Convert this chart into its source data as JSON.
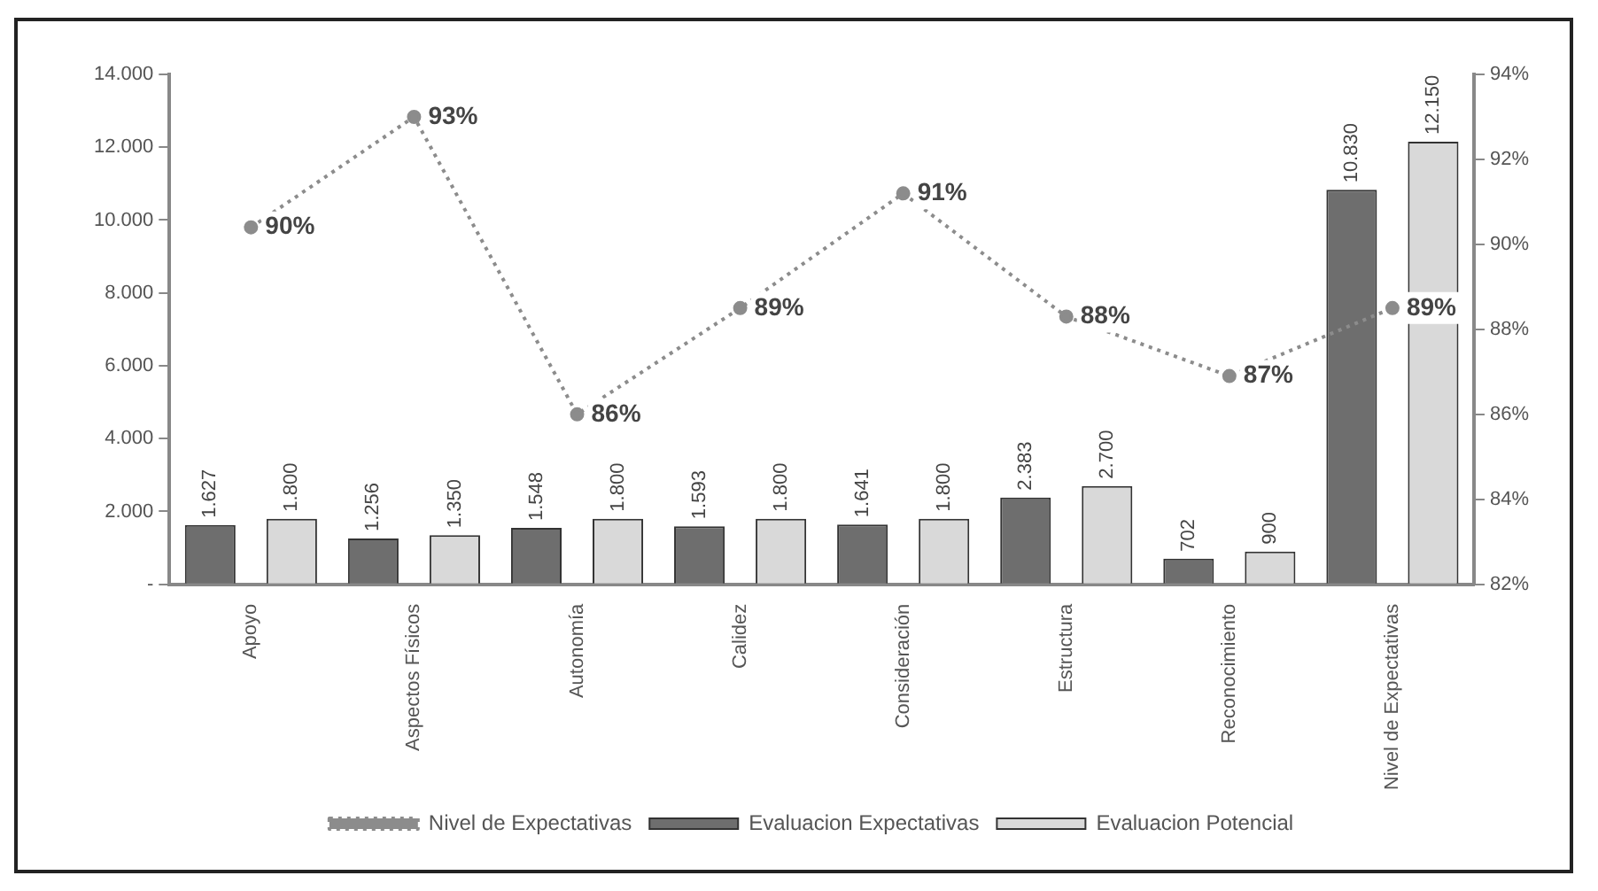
{
  "chart_data": {
    "type": "bar",
    "categories": [
      "Apoyo",
      "Aspectos Físicos",
      "Autonomía",
      "Calidez",
      "Consideración",
      "Estructura",
      "Reconocimiento",
      "Nivel de Expectativas"
    ],
    "series": [
      {
        "name": "Evaluacion Expectativas",
        "color": "#6e6e6e",
        "values": [
          1627,
          1256,
          1548,
          1593,
          1641,
          2383,
          702,
          10830
        ],
        "value_labels": [
          "1.627",
          "1.256",
          "1.548",
          "1.593",
          "1.641",
          "2.383",
          "702",
          "10.830"
        ]
      },
      {
        "name": "Evaluacion Potencial",
        "color": "#d9d9d9",
        "values": [
          1800,
          1350,
          1800,
          1800,
          1800,
          2700,
          900,
          12150
        ],
        "value_labels": [
          "1.800",
          "1.350",
          "1.800",
          "1.800",
          "1.800",
          "2.700",
          "900",
          "12.150"
        ]
      },
      {
        "name": "Nivel de Expectativas",
        "type": "line",
        "axis": "y2",
        "color": "#8c8c8c",
        "marker": "circle",
        "line_style": "dotted",
        "values": [
          90.4,
          93.0,
          86.0,
          88.5,
          91.2,
          88.3,
          86.9,
          88.5
        ],
        "value_labels": [
          "90%",
          "93%",
          "86%",
          "89%",
          "91%",
          "88%",
          "87%",
          "89%"
        ]
      }
    ],
    "ylim": [
      0,
      14000
    ],
    "yticks": [
      {
        "value": 0,
        "label": "-"
      },
      {
        "value": 2000,
        "label": "2.000"
      },
      {
        "value": 4000,
        "label": "4.000"
      },
      {
        "value": 6000,
        "label": "6.000"
      },
      {
        "value": 8000,
        "label": "8.000"
      },
      {
        "value": 10000,
        "label": "10.000"
      },
      {
        "value": 12000,
        "label": "12.000"
      },
      {
        "value": 14000,
        "label": "14.000"
      }
    ],
    "y2lim": [
      82,
      94
    ],
    "y2ticks": [
      {
        "value": 82,
        "label": "82%"
      },
      {
        "value": 84,
        "label": "84%"
      },
      {
        "value": 86,
        "label": "86%"
      },
      {
        "value": 88,
        "label": "88%"
      },
      {
        "value": 90,
        "label": "90%"
      },
      {
        "value": 92,
        "label": "92%"
      },
      {
        "value": 94,
        "label": "94%"
      }
    ],
    "grid": false,
    "legend": "bottom"
  }
}
